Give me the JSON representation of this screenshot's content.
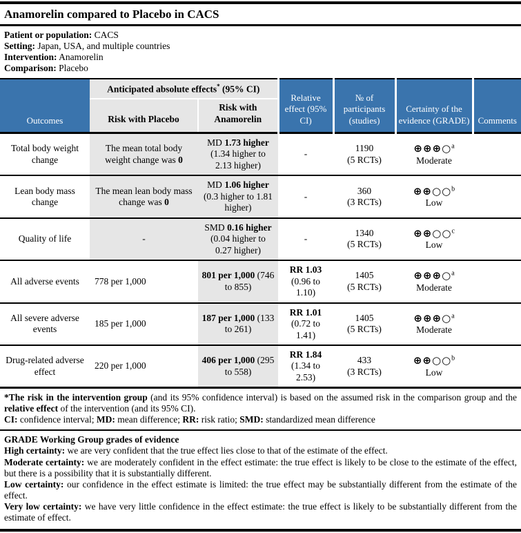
{
  "colors": {
    "header_blue": "#3a74ad",
    "cell_gray": "#e6e6e6"
  },
  "title": "Anamorelin compared to Placebo in CACS",
  "info": [
    {
      "label": "Patient or population:",
      "value": " CACS"
    },
    {
      "label": "Setting:",
      "value": " Japan, USA, and multiple countries"
    },
    {
      "label": "Intervention:",
      "value": " Anamorelin"
    },
    {
      "label": "Comparison:",
      "value": " Placebo"
    }
  ],
  "header": {
    "outcomes": "Outcomes",
    "absolute_effects": "Anticipated absolute effects",
    "absolute_effects_sup": "*",
    "absolute_effects_ci": " (95% CI)",
    "risk_placebo": "Risk with Placebo",
    "risk_anamorelin": "Risk with Anamorelin",
    "relative_effect": "Relative effect (95% CI)",
    "participants": "№ of participants (studies)",
    "certainty": "Certainty of the evidence (GRADE)",
    "comments": "Comments"
  },
  "rows": [
    {
      "outcome": "Total body weight change",
      "placebo_text": "The mean total body weight change was ",
      "placebo_bold": "0",
      "anamorelin_prefix": "MD ",
      "anamorelin_bold": "1.73 higher",
      "anamorelin_ci": "(1.34 higher to 2.13 higher)",
      "relative_plain": "-",
      "relative_bold": "",
      "relative_ci": "",
      "participants_n": "1190",
      "participants_studies": "(5 RCTs)",
      "certainty_symbols": "⊕⊕⊕○",
      "certainty_sup": "a",
      "certainty_label": "Moderate",
      "comments": ""
    },
    {
      "outcome": "Lean body mass change",
      "placebo_text": "The mean lean body mass change was ",
      "placebo_bold": "0",
      "anamorelin_prefix": "MD ",
      "anamorelin_bold": "1.06 higher",
      "anamorelin_ci": "(0.3 higher to 1.81 higher)",
      "relative_plain": "-",
      "relative_bold": "",
      "relative_ci": "",
      "participants_n": "360",
      "participants_studies": "(3 RCTs)",
      "certainty_symbols": "⊕⊕○○",
      "certainty_sup": "b",
      "certainty_label": "Low",
      "comments": ""
    },
    {
      "outcome": "Quality of life",
      "placebo_text": "-",
      "placebo_bold": "",
      "anamorelin_prefix": "SMD ",
      "anamorelin_bold": "0.16 higher",
      "anamorelin_ci": "(0.04 higher to 0.27 higher)",
      "relative_plain": "-",
      "relative_bold": "",
      "relative_ci": "",
      "participants_n": "1340",
      "participants_studies": "(5 RCTs)",
      "certainty_symbols": "⊕⊕○○",
      "certainty_sup": "c",
      "certainty_label": "Low",
      "comments": ""
    },
    {
      "outcome": "All adverse events",
      "placebo_text": "778 per 1,000",
      "placebo_bold": "",
      "anamorelin_prefix": "",
      "anamorelin_bold": "801 per 1,000",
      "anamorelin_ci": "(746 to 855)",
      "relative_plain": "",
      "relative_bold": "RR 1.03",
      "relative_ci": "(0.96 to 1.10)",
      "participants_n": "1405",
      "participants_studies": "(5 RCTs)",
      "certainty_symbols": "⊕⊕⊕○",
      "certainty_sup": "a",
      "certainty_label": "Moderate",
      "comments": ""
    },
    {
      "outcome": "All severe adverse events",
      "placebo_text": "185 per 1,000",
      "placebo_bold": "",
      "anamorelin_prefix": "",
      "anamorelin_bold": "187 per 1,000",
      "anamorelin_ci": "(133 to 261)",
      "relative_plain": "",
      "relative_bold": "RR 1.01",
      "relative_ci": "(0.72 to 1.41)",
      "participants_n": "1405",
      "participants_studies": "(5 RCTs)",
      "certainty_symbols": "⊕⊕⊕○",
      "certainty_sup": "a",
      "certainty_label": "Moderate",
      "comments": ""
    },
    {
      "outcome": "Drug-related adverse effect",
      "placebo_text": "220 per 1,000",
      "placebo_bold": "",
      "anamorelin_prefix": "",
      "anamorelin_bold": "406 per 1,000",
      "anamorelin_ci": "(295 to 558)",
      "relative_plain": "",
      "relative_bold": "RR 1.84",
      "relative_ci": "(1.34 to 2.53)",
      "participants_n": "433",
      "participants_studies": "(3 RCTs)",
      "certainty_symbols": "⊕⊕○○",
      "certainty_sup": "b",
      "certainty_label": "Low",
      "comments": ""
    }
  ],
  "footnote": {
    "bold1": "*The risk in the intervention group",
    "text1": " (and its 95% confidence interval) is based on the assumed risk in the comparison group and the ",
    "bold2": "relative effect",
    "text2": " of the intervention (and its 95% CI)."
  },
  "abbreviations": [
    {
      "bold": "CI:",
      "text": " confidence interval; "
    },
    {
      "bold": "MD:",
      "text": " mean difference; "
    },
    {
      "bold": "RR:",
      "text": " risk ratio; "
    },
    {
      "bold": "SMD:",
      "text": " standardized mean difference"
    }
  ],
  "grade": {
    "heading": "GRADE Working Group grades of evidence",
    "items": [
      {
        "bold": "High certainty:",
        "text": " we are very confident that the true effect lies close to that of the estimate of the effect."
      },
      {
        "bold": "Moderate certainty:",
        "text": " we are moderately confident in the effect estimate: the true effect is likely to be close to the estimate of the effect, but there is a possibility that it is substantially different."
      },
      {
        "bold": "Low certainty:",
        "text": " our confidence in the effect estimate is limited: the true effect may be substantially different from the estimate of the effect."
      },
      {
        "bold": "Very low certainty:",
        "text": " we have very little confidence in the effect estimate: the true effect is likely to be substantially different from the estimate of effect."
      }
    ]
  }
}
